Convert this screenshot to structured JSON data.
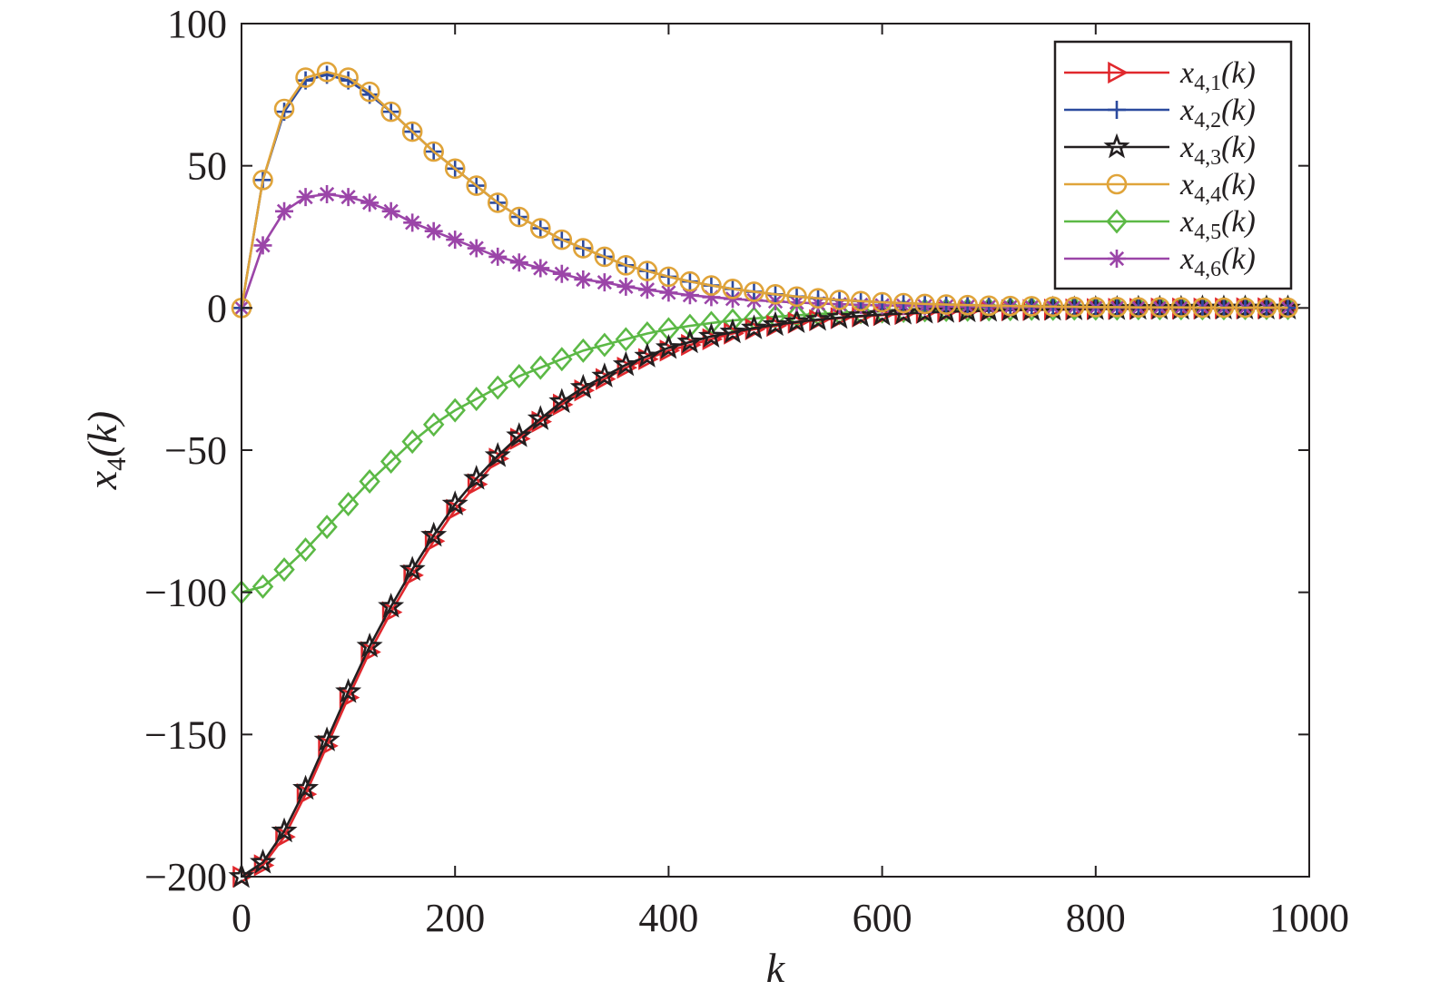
{
  "chart_data": {
    "type": "line",
    "title": "",
    "xlabel": "k",
    "ylabel_main": "x",
    "ylabel_sub": "4",
    "ylabel_arg": "(k)",
    "xlim": [
      0,
      1000
    ],
    "ylim": [
      -200,
      100
    ],
    "xticks": [
      0,
      200,
      400,
      600,
      800,
      1000
    ],
    "yticks": [
      100,
      50,
      0,
      -50,
      -100,
      -150,
      -200
    ],
    "xtick_labels": [
      "0",
      "200",
      "400",
      "600",
      "800",
      "1000"
    ],
    "ytick_labels": [
      "100",
      "50",
      "0",
      "−50",
      "−100",
      "−150",
      "−200"
    ],
    "grid": false,
    "box": true,
    "legend_position": "top-right",
    "x": [
      0,
      20,
      40,
      60,
      80,
      100,
      120,
      140,
      160,
      180,
      200,
      220,
      240,
      260,
      280,
      300,
      320,
      340,
      360,
      380,
      400,
      420,
      440,
      460,
      480,
      500,
      520,
      540,
      560,
      580,
      600,
      620,
      640,
      660,
      680,
      700,
      720,
      740,
      760,
      780,
      800,
      820,
      840,
      860,
      880,
      900,
      920,
      940,
      960,
      980
    ],
    "series": [
      {
        "name": "x4,1(k)",
        "label_main": "x",
        "label_sub": "4,1",
        "label_arg": "(k)",
        "color": "#e0282d",
        "marker": "triangle-right",
        "values": [
          -200,
          -196,
          -186,
          -171,
          -154,
          -137,
          -121,
          -107,
          -94,
          -82,
          -71,
          -62,
          -53,
          -46,
          -40,
          -34,
          -29,
          -25,
          -21,
          -18,
          -15,
          -13,
          -11,
          -9,
          -7.5,
          -6.3,
          -5.2,
          -4.3,
          -3.6,
          -3,
          -2.5,
          -2.1,
          -1.7,
          -1.4,
          -1.2,
          -1,
          -0.8,
          -0.7,
          -0.6,
          -0.5,
          -0.4,
          -0.3,
          -0.3,
          -0.2,
          -0.2,
          -0.2,
          -0.1,
          -0.1,
          -0.1,
          -0.1
        ]
      },
      {
        "name": "x4,2(k)",
        "label_main": "x",
        "label_sub": "4,2",
        "label_arg": "(k)",
        "color": "#2b4a9e",
        "marker": "plus",
        "values": [
          0,
          45,
          69,
          80,
          82,
          80,
          75,
          69,
          62,
          55,
          49,
          43,
          37,
          32,
          28,
          24,
          21,
          18,
          15,
          13,
          11,
          9.3,
          7.9,
          6.7,
          5.7,
          4.8,
          4,
          3.4,
          2.8,
          2.4,
          2,
          1.7,
          1.4,
          1.2,
          1,
          0.8,
          0.7,
          0.6,
          0.5,
          0.4,
          0.3,
          0.3,
          0.2,
          0.2,
          0.2,
          0.1,
          0.1,
          0.1,
          0.1,
          0.1
        ]
      },
      {
        "name": "x4,3(k)",
        "label_main": "x",
        "label_sub": "4,3",
        "label_arg": "(k)",
        "color": "#231f20",
        "marker": "star",
        "values": [
          -200,
          -195,
          -184,
          -169,
          -152,
          -135,
          -119,
          -105,
          -92,
          -80,
          -69,
          -60,
          -52,
          -45,
          -39,
          -33,
          -28,
          -24,
          -20,
          -17,
          -14,
          -12,
          -10,
          -8.5,
          -7.1,
          -5.9,
          -4.9,
          -4.1,
          -3.4,
          -2.8,
          -2.3,
          -1.9,
          -1.6,
          -1.3,
          -1.1,
          -0.9,
          -0.7,
          -0.6,
          -0.5,
          -0.4,
          -0.3,
          -0.3,
          -0.2,
          -0.2,
          -0.2,
          -0.1,
          -0.1,
          -0.1,
          -0.1,
          -0.1
        ]
      },
      {
        "name": "x4,4(k)",
        "label_main": "x",
        "label_sub": "4,4",
        "label_arg": "(k)",
        "color": "#e0a43a",
        "marker": "circle",
        "values": [
          0,
          45,
          70,
          81,
          83,
          81,
          76,
          69,
          62,
          55,
          49,
          43,
          37,
          32,
          28,
          24,
          21,
          18,
          15,
          13,
          11,
          9.3,
          7.9,
          6.7,
          5.7,
          4.8,
          4,
          3.4,
          2.8,
          2.4,
          2,
          1.7,
          1.4,
          1.2,
          1,
          0.8,
          0.7,
          0.6,
          0.5,
          0.4,
          0.3,
          0.3,
          0.2,
          0.2,
          0.2,
          0.1,
          0.1,
          0.1,
          0.1,
          0.1
        ]
      },
      {
        "name": "x4,5(k)",
        "label_main": "x",
        "label_sub": "4,5",
        "label_arg": "(k)",
        "color": "#5cb946",
        "marker": "diamond",
        "values": [
          -100,
          -98,
          -92,
          -85,
          -77,
          -69,
          -61,
          -54,
          -47,
          -41,
          -36,
          -32,
          -28,
          -24,
          -21,
          -18,
          -15,
          -13,
          -11,
          -9,
          -7.5,
          -6.3,
          -5.3,
          -4.4,
          -3.7,
          -3.1,
          -2.6,
          -2.1,
          -1.8,
          -1.5,
          -1.2,
          -1,
          -0.8,
          -0.7,
          -0.6,
          -0.5,
          -0.4,
          -0.3,
          -0.3,
          -0.2,
          -0.2,
          -0.2,
          -0.1,
          -0.1,
          -0.1,
          -0.1,
          -0.1,
          0,
          0,
          0
        ]
      },
      {
        "name": "x4,6(k)",
        "label_main": "x",
        "label_sub": "4,6",
        "label_arg": "(k)",
        "color": "#9b45a8",
        "marker": "asterisk",
        "values": [
          0,
          22,
          34,
          39,
          40,
          39,
          37,
          34,
          30,
          27,
          24,
          21,
          18,
          16,
          14,
          12,
          10,
          9,
          7.5,
          6.4,
          5.4,
          4.5,
          3.8,
          3.2,
          2.7,
          2.3,
          1.9,
          1.6,
          1.3,
          1.1,
          0.9,
          0.8,
          0.6,
          0.5,
          0.4,
          0.4,
          0.3,
          0.3,
          0.2,
          0.2,
          0.1,
          0.1,
          0.1,
          0.1,
          0.1,
          0.1,
          0,
          0,
          0,
          0
        ]
      }
    ]
  }
}
